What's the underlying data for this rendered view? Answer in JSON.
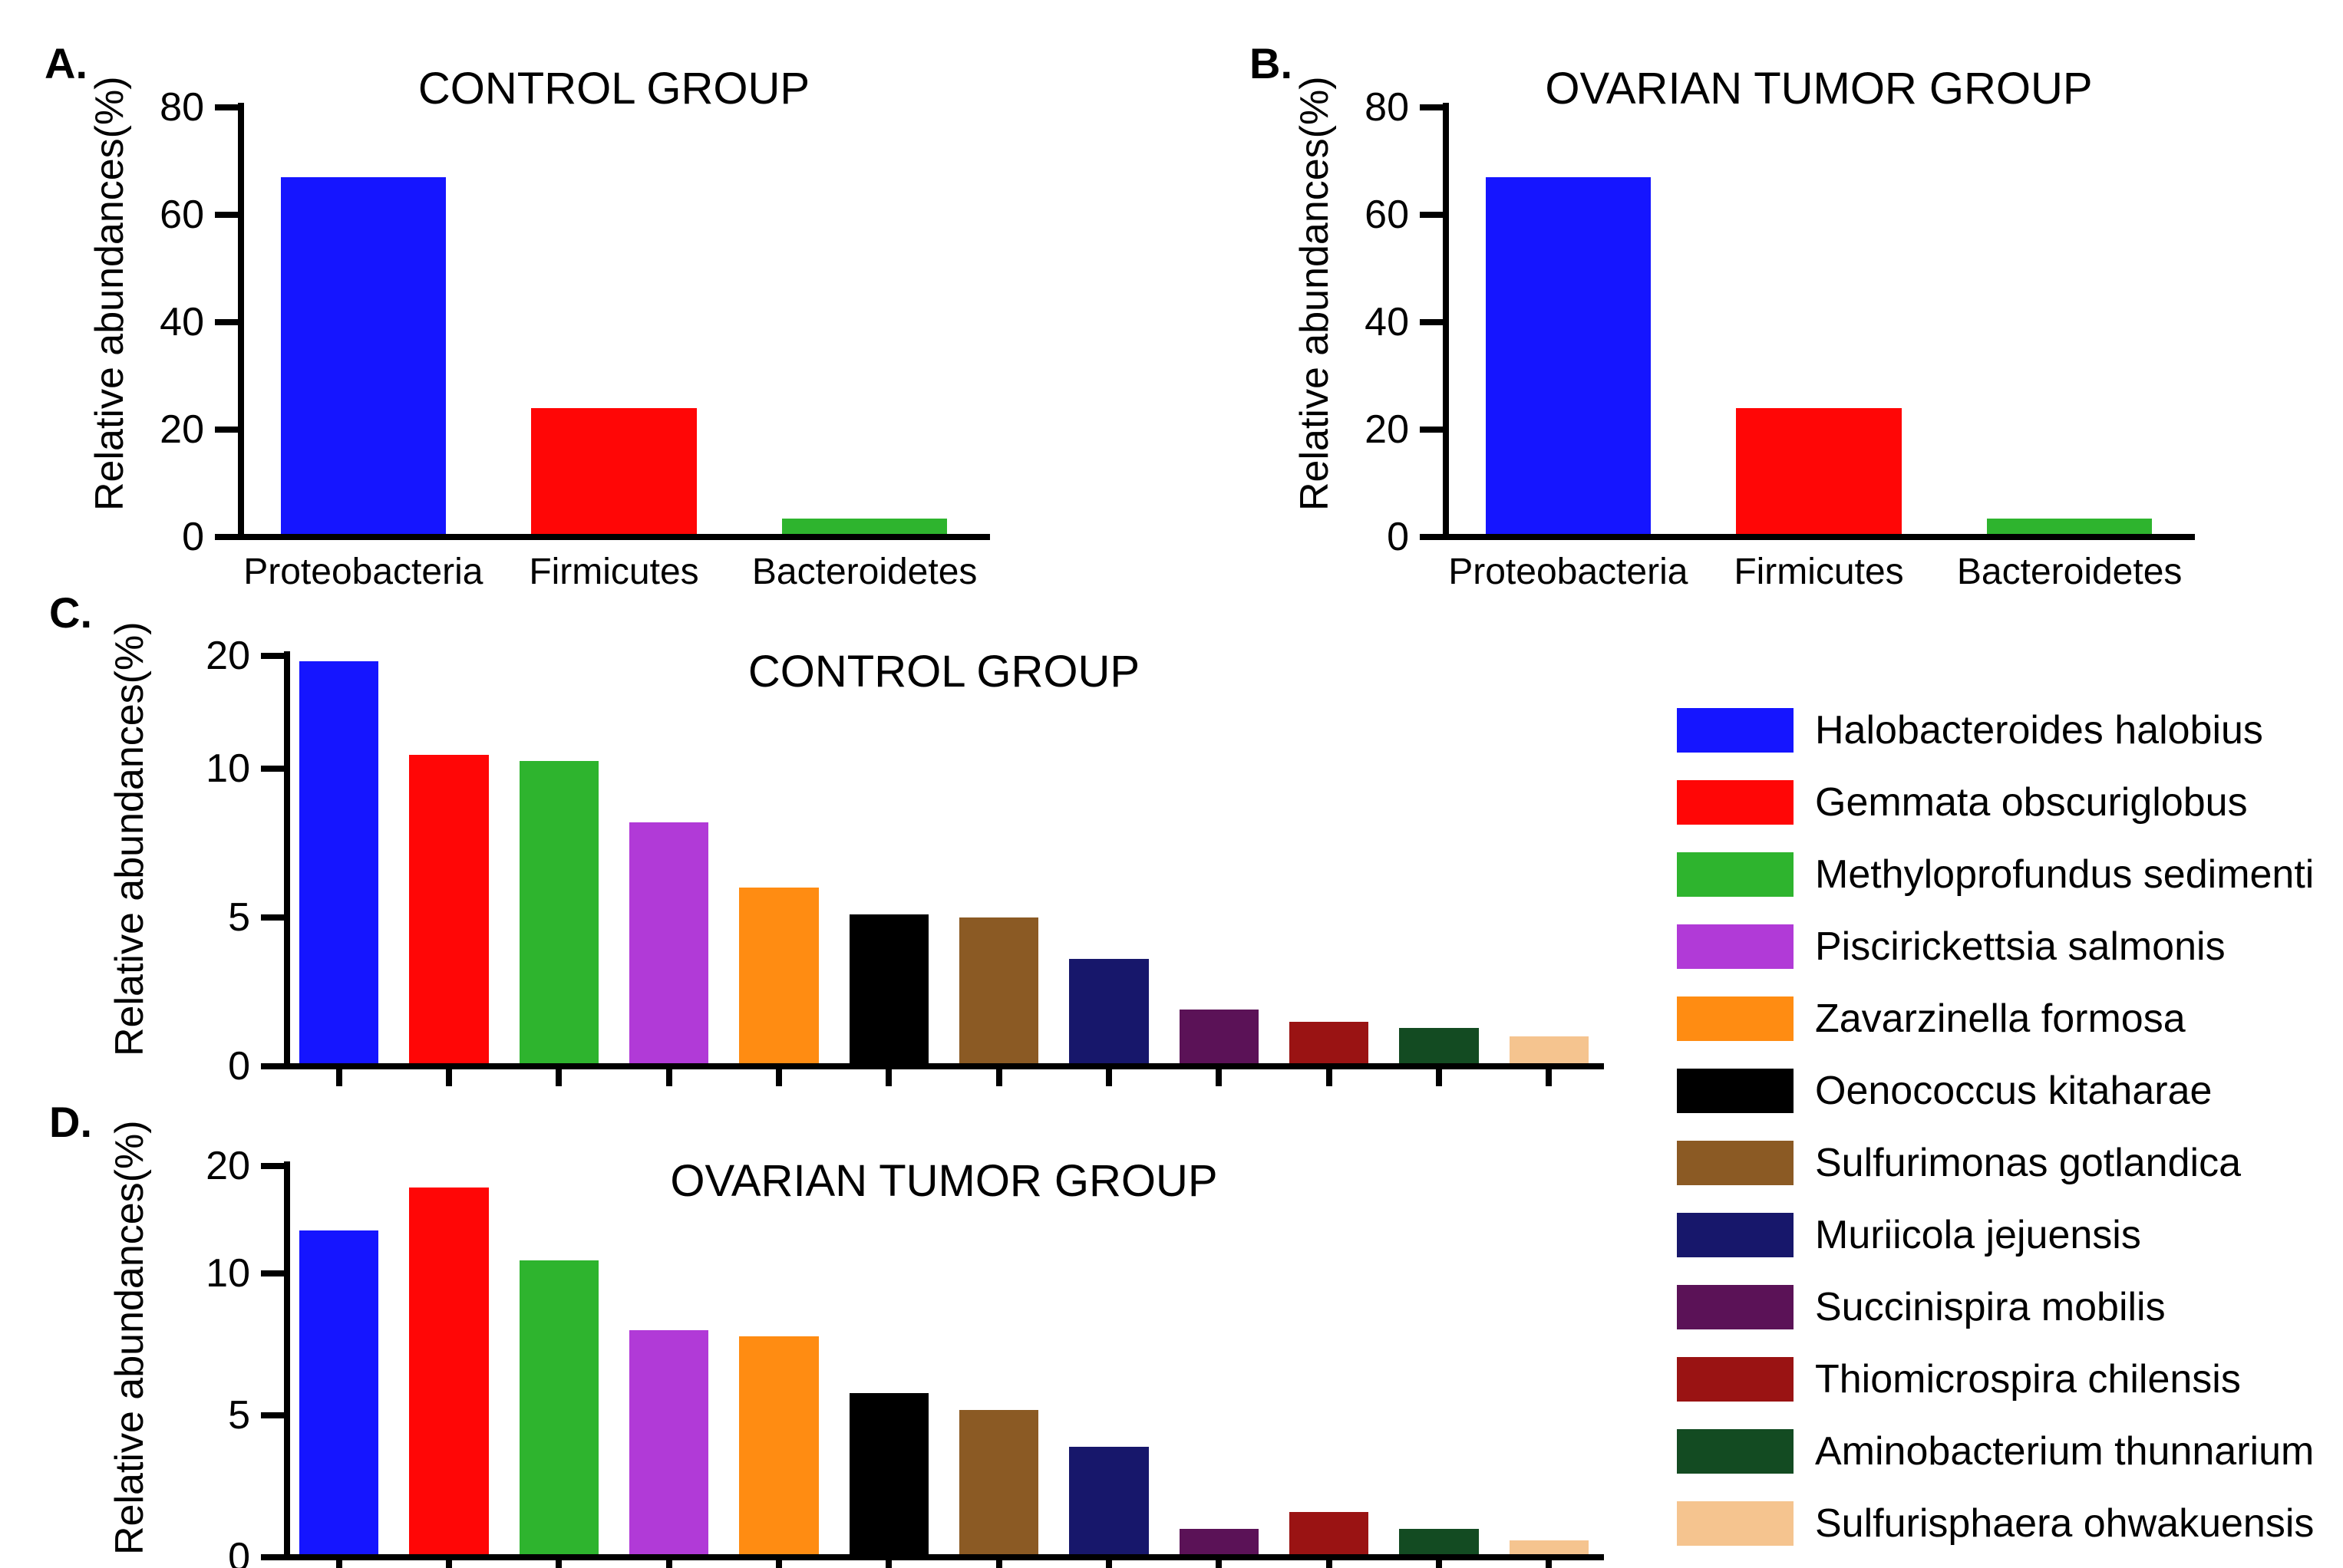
{
  "figure": {
    "background": "#ffffff"
  },
  "chart_data": [
    {
      "id": "A",
      "type": "bar",
      "panel_label": "A.",
      "title": "CONTROL GROUP",
      "ylabel": "Relative abundances(%)",
      "categories": [
        "Proteobacteria",
        "Firmicutes",
        "Bacteroidetes"
      ],
      "values": [
        67,
        24,
        3.5
      ],
      "bar_colors": [
        "#1515ff",
        "#ff0606",
        "#2eb42e"
      ],
      "yticks": [
        0,
        20,
        40,
        60,
        80
      ],
      "ylim": [
        0,
        80
      ],
      "scale_breaks": [
        [
          0,
          0
        ],
        [
          80,
          100
        ]
      ],
      "show_x_ticklabels": true,
      "show_x_tickmarks": false,
      "grid": false
    },
    {
      "id": "B",
      "type": "bar",
      "panel_label": "B.",
      "title": "OVARIAN TUMOR GROUP",
      "ylabel": "Relative abundances(%)",
      "categories": [
        "Proteobacteria",
        "Firmicutes",
        "Bacteroidetes"
      ],
      "values": [
        67,
        24,
        3.5
      ],
      "bar_colors": [
        "#1515ff",
        "#ff0606",
        "#2eb42e"
      ],
      "yticks": [
        0,
        20,
        40,
        60,
        80
      ],
      "ylim": [
        0,
        80
      ],
      "scale_breaks": [
        [
          0,
          0
        ],
        [
          80,
          100
        ]
      ],
      "show_x_ticklabels": true,
      "show_x_tickmarks": false,
      "grid": false
    },
    {
      "id": "C",
      "type": "bar",
      "panel_label": "C.",
      "title": "CONTROL GROUP",
      "ylabel": "Relative abundances(%)",
      "categories": [
        "Halobacteroides halobius",
        "Gemmata obscuriglobus",
        "Methyloprofundus sedimenti",
        "Piscirickettsia salmonis",
        "Zavarzinella formosa",
        "Oenococcus kitaharae",
        "Sulfurimonas gotlandica",
        "Muriicola jejuensis",
        "Succinispira mobilis",
        "Thiomicrospira chilensis",
        "Aminobacterium thunnarium",
        "Sulfurisphaera ohwakuensis"
      ],
      "values": [
        19.5,
        11.2,
        10.7,
        8.2,
        6,
        5.1,
        5,
        3.6,
        1.9,
        1.5,
        1.3,
        1
      ],
      "bar_colors": [
        "#1515ff",
        "#ff0606",
        "#2eb42e",
        "#b13ad7",
        "#ff8c12",
        "#000000",
        "#8b5a24",
        "#17176b",
        "#5b1257",
        "#9a1313",
        "#134b22",
        "#f5c48f"
      ],
      "yticks": [
        0,
        5,
        10,
        20
      ],
      "ylim": [
        0,
        20
      ],
      "scale_breaks": [
        [
          0,
          0
        ],
        [
          10,
          72.5
        ],
        [
          20,
          100
        ]
      ],
      "show_x_ticklabels": false,
      "show_x_tickmarks": true,
      "grid": false
    },
    {
      "id": "D",
      "type": "bar",
      "panel_label": "D.",
      "title": "OVARIAN TUMOR GROUP",
      "ylabel": "Relative abundances(%)",
      "categories": [
        "Halobacteroides halobius",
        "Gemmata obscuriglobus",
        "Methyloprofundus sedimenti",
        "Piscirickettsia salmonis",
        "Zavarzinella formosa",
        "Oenococcus kitaharae",
        "Sulfurimonas gotlandica",
        "Muriicola jejuensis",
        "Succinispira mobilis",
        "Thiomicrospira chilensis",
        "Aminobacterium thunnarium",
        "Sulfurisphaera ohwakuensis"
      ],
      "values": [
        14,
        18,
        11.2,
        8,
        7.8,
        5.8,
        5.2,
        3.9,
        1,
        1.6,
        1,
        0.6
      ],
      "bar_colors": [
        "#1515ff",
        "#ff0606",
        "#2eb42e",
        "#b13ad7",
        "#ff8c12",
        "#000000",
        "#8b5a24",
        "#17176b",
        "#5b1257",
        "#9a1313",
        "#134b22",
        "#f5c48f"
      ],
      "yticks": [
        0,
        5,
        10,
        20
      ],
      "ylim": [
        0,
        20
      ],
      "scale_breaks": [
        [
          0,
          0
        ],
        [
          10,
          72.5
        ],
        [
          20,
          100
        ]
      ],
      "show_x_ticklabels": false,
      "show_x_tickmarks": true,
      "grid": false
    }
  ],
  "legend": {
    "position": "right",
    "items": [
      {
        "label": "Halobacteroides halobius",
        "color": "#1515ff"
      },
      {
        "label": "Gemmata obscuriglobus",
        "color": "#ff0606"
      },
      {
        "label": "Methyloprofundus sedimenti",
        "color": "#2eb42e"
      },
      {
        "label": "Piscirickettsia salmonis",
        "color": "#b13ad7"
      },
      {
        "label": "Zavarzinella formosa",
        "color": "#ff8c12"
      },
      {
        "label": "Oenococcus kitaharae",
        "color": "#000000"
      },
      {
        "label": "Sulfurimonas gotlandica",
        "color": "#8b5a24"
      },
      {
        "label": "Muriicola jejuensis",
        "color": "#17176b"
      },
      {
        "label": "Succinispira mobilis",
        "color": "#5b1257"
      },
      {
        "label": "Thiomicrospira chilensis",
        "color": "#9a1313"
      },
      {
        "label": "Aminobacterium thunnarium",
        "color": "#134b22"
      },
      {
        "label": "Sulfurisphaera ohwakuensis",
        "color": "#f5c48f"
      }
    ]
  }
}
